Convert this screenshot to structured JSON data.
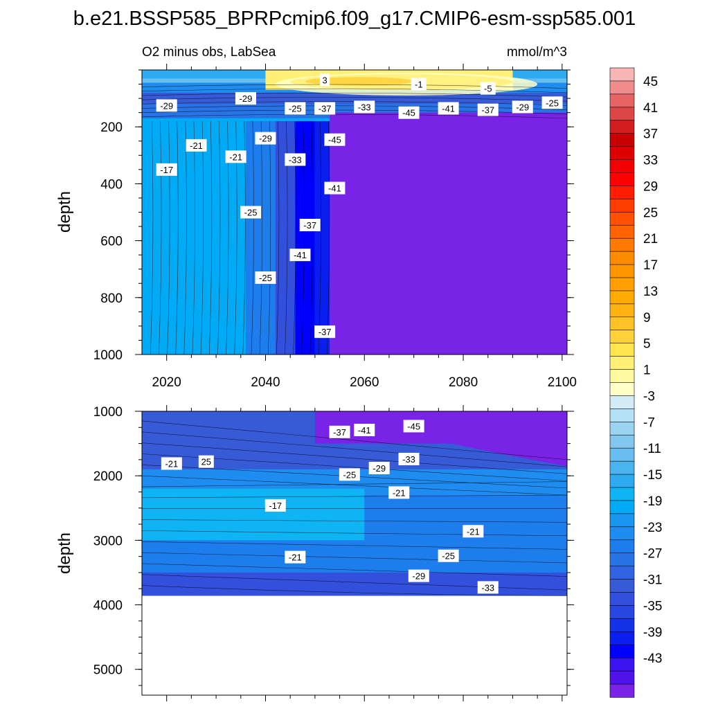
{
  "title": "b.e21.BSSP585_BPRPcmip6.f09_g17.CMIP6-esm-ssp585.001",
  "chart_data": [
    {
      "type": "contour",
      "panel": "upper",
      "left_label": "O2 minus obs, LabSea",
      "right_label": "mmol/m^3",
      "xlabel": "",
      "ylabel": "depth",
      "xlim": [
        2015,
        2101
      ],
      "ylim": [
        1000,
        0
      ],
      "x_ticks": [
        "2020",
        "2040",
        "2060",
        "2080",
        "2100"
      ],
      "y_ticks": [
        "200",
        "400",
        "600",
        "800",
        "1000"
      ],
      "regions": [
        {
          "x": [
            2015,
            2036
          ],
          "depth": [
            180,
            1000
          ],
          "value": -17
        },
        {
          "x": [
            2036,
            2042
          ],
          "depth": [
            180,
            1000
          ],
          "value": -23
        },
        {
          "x": [
            2042,
            2046
          ],
          "depth": [
            180,
            1000
          ],
          "value": -31
        },
        {
          "x": [
            2046,
            2050
          ],
          "depth": [
            180,
            1000
          ],
          "value": -39
        },
        {
          "x": [
            2050,
            2053
          ],
          "depth": [
            180,
            1000
          ],
          "value": -37
        },
        {
          "x": [
            2053,
            2101
          ],
          "depth": [
            150,
            1000
          ],
          "value": -47
        },
        {
          "x": [
            2040,
            2090
          ],
          "depth": [
            0,
            70
          ],
          "value": 5
        }
      ],
      "contour_labels": [
        {
          "text": "3",
          "x": 2052,
          "depth": 35
        },
        {
          "text": "-1",
          "x": 2071,
          "depth": 50
        },
        {
          "text": "-5",
          "x": 2085,
          "depth": 65
        },
        {
          "text": "-29",
          "x": 2020,
          "depth": 125
        },
        {
          "text": "-29",
          "x": 2036,
          "depth": 100
        },
        {
          "text": "-25",
          "x": 2046,
          "depth": 135
        },
        {
          "text": "-37",
          "x": 2052,
          "depth": 135
        },
        {
          "text": "-33",
          "x": 2060,
          "depth": 130
        },
        {
          "text": "-45",
          "x": 2069,
          "depth": 150
        },
        {
          "text": "-41",
          "x": 2077,
          "depth": 135
        },
        {
          "text": "-37",
          "x": 2085,
          "depth": 140
        },
        {
          "text": "-29",
          "x": 2092,
          "depth": 130
        },
        {
          "text": "-25",
          "x": 2098,
          "depth": 115
        },
        {
          "text": "-21",
          "x": 2026,
          "depth": 265
        },
        {
          "text": "-29",
          "x": 2040,
          "depth": 240
        },
        {
          "text": "-21",
          "x": 2034,
          "depth": 305
        },
        {
          "text": "-45",
          "x": 2054,
          "depth": 245
        },
        {
          "text": "-17",
          "x": 2020,
          "depth": 350
        },
        {
          "text": "-33",
          "x": 2046,
          "depth": 315
        },
        {
          "text": "-41",
          "x": 2054,
          "depth": 415
        },
        {
          "text": "-25",
          "x": 2037,
          "depth": 500
        },
        {
          "text": "-37",
          "x": 2049,
          "depth": 545
        },
        {
          "text": "-41",
          "x": 2047,
          "depth": 650
        },
        {
          "text": "-25",
          "x": 2040,
          "depth": 730
        },
        {
          "text": "-37",
          "x": 2052,
          "depth": 920
        }
      ]
    },
    {
      "type": "contour",
      "panel": "lower",
      "xlabel": "",
      "ylabel": "depth",
      "xlim": [
        2015,
        2101
      ],
      "ylim": [
        5400,
        1000
      ],
      "y_ticks": [
        "1000",
        "2000",
        "3000",
        "4000",
        "5000"
      ],
      "data_bottom_depth": 3860,
      "regions": [
        {
          "x": [
            2015,
            2101
          ],
          "depth": [
            1000,
            1900
          ],
          "value": -29
        },
        {
          "x": [
            2015,
            2101
          ],
          "depth": [
            1900,
            2300
          ],
          "value": -21
        },
        {
          "x": [
            2015,
            2060
          ],
          "depth": [
            2200,
            3000
          ],
          "value": -15
        },
        {
          "x": [
            2015,
            2101
          ],
          "depth": [
            3000,
            3500
          ],
          "value": -23
        },
        {
          "x": [
            2015,
            2101
          ],
          "depth": [
            3500,
            3860
          ],
          "value": -31
        },
        {
          "x": [
            2050,
            2101
          ],
          "depth": [
            1000,
            1500
          ],
          "value": -47
        }
      ],
      "contour_labels": [
        {
          "text": "-45",
          "x": 2070,
          "depth": 1230
        },
        {
          "text": "-41",
          "x": 2060,
          "depth": 1290
        },
        {
          "text": "-37",
          "x": 2055,
          "depth": 1320
        },
        {
          "text": "-33",
          "x": 2069,
          "depth": 1740
        },
        {
          "text": "-29",
          "x": 2063,
          "depth": 1880
        },
        {
          "text": "-25",
          "x": 2057,
          "depth": 1980
        },
        {
          "text": "-21",
          "x": 2021,
          "depth": 1810
        },
        {
          "text": "25",
          "x": 2028,
          "depth": 1780
        },
        {
          "text": "-21",
          "x": 2067,
          "depth": 2260
        },
        {
          "text": "-17",
          "x": 2042,
          "depth": 2460
        },
        {
          "text": "-21",
          "x": 2082,
          "depth": 2860
        },
        {
          "text": "-21",
          "x": 2046,
          "depth": 3260
        },
        {
          "text": "-25",
          "x": 2077,
          "depth": 3240
        },
        {
          "text": "-29",
          "x": 2071,
          "depth": 3550
        },
        {
          "text": "-33",
          "x": 2085,
          "depth": 3730
        }
      ]
    }
  ],
  "colorbar": {
    "labels": [
      "45",
      "41",
      "37",
      "33",
      "29",
      "25",
      "21",
      "17",
      "13",
      "9",
      "5",
      "1",
      "-3",
      "-7",
      "-11",
      "-15",
      "-19",
      "-23",
      "-27",
      "-31",
      "-35",
      "-39",
      "-43"
    ],
    "levels_top_to_bottom": [
      49,
      47,
      45,
      43,
      41,
      39,
      37,
      35,
      33,
      31,
      29,
      27,
      25,
      23,
      21,
      19,
      17,
      15,
      13,
      11,
      9,
      7,
      5,
      3,
      1,
      -1,
      -3,
      -5,
      -7,
      -9,
      -11,
      -13,
      -15,
      -17,
      -19,
      -21,
      -23,
      -25,
      -27,
      -29,
      -31,
      -33,
      -35,
      -37,
      -39,
      -41,
      -43,
      -45
    ],
    "colors": [
      "#f9b4b4",
      "#f08c8c",
      "#e66464",
      "#dc4646",
      "#d21e1e",
      "#c80000",
      "#dc0000",
      "#f00000",
      "#ff0000",
      "#ff1e00",
      "#ff3c00",
      "#ff5000",
      "#ff6400",
      "#ff7800",
      "#ff8c00",
      "#ff9600",
      "#ffa000",
      "#ffaa00",
      "#ffb414",
      "#ffc328",
      "#ffd23c",
      "#ffe650",
      "#fff078",
      "#fffaa0",
      "#ffffc8",
      "#d2ebf5",
      "#b4e1f5",
      "#9bd4f0",
      "#82c8ee",
      "#69bef0",
      "#4bb4f0",
      "#2daaf0",
      "#0fb4f5",
      "#00aaf5",
      "#1996f0",
      "#1e8cf0",
      "#1e7ded",
      "#2873e6",
      "#3264e1",
      "#375ad7",
      "#3250dc",
      "#2846e1",
      "#1432e6",
      "#0a1ef0",
      "#0000ff",
      "#3c14f0",
      "#5014eb",
      "#7823e6"
    ]
  }
}
